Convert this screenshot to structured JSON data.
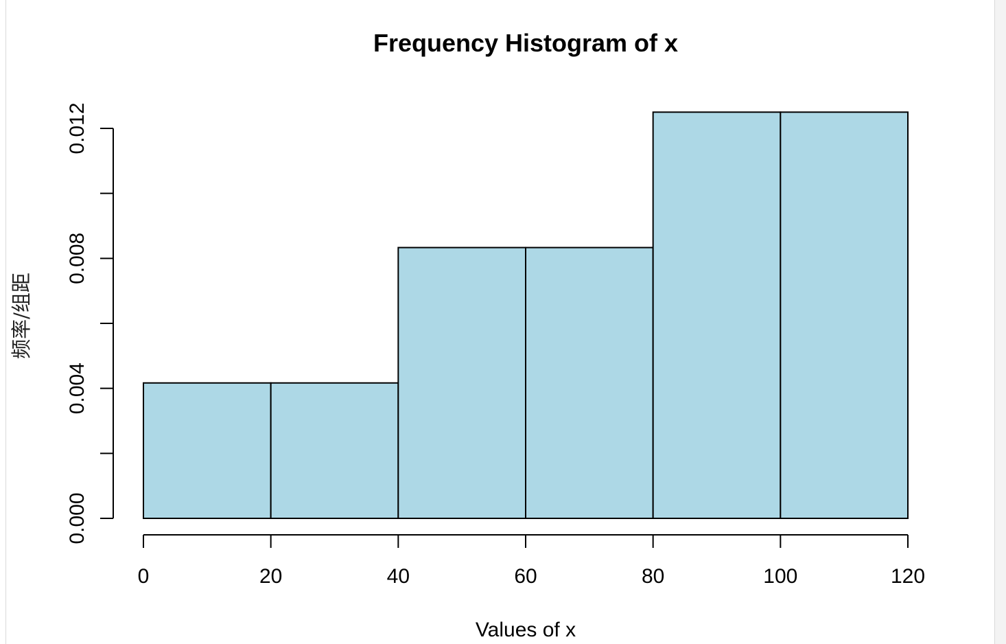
{
  "chart_data": {
    "type": "bar",
    "title": "Frequency Histogram of x",
    "xlabel": "Values of x",
    "ylabel": "频率/组距",
    "bins": [
      {
        "from": 0,
        "to": 20,
        "density": 0.004167
      },
      {
        "from": 20,
        "to": 40,
        "density": 0.004167
      },
      {
        "from": 40,
        "to": 60,
        "density": 0.008333
      },
      {
        "from": 60,
        "to": 80,
        "density": 0.008333
      },
      {
        "from": 80,
        "to": 100,
        "density": 0.0125
      },
      {
        "from": 100,
        "to": 120,
        "density": 0.0125
      }
    ],
    "x_ticks": [
      "0",
      "20",
      "40",
      "60",
      "80",
      "100",
      "120"
    ],
    "y_ticks": [
      "0.000",
      "0.004",
      "0.008",
      "0.012"
    ],
    "y_minor_ticks": [
      0.002,
      0.006,
      0.01
    ],
    "xlim": [
      0,
      120
    ],
    "ylim": [
      0,
      0.012
    ],
    "bar_fill": "#add8e6",
    "bar_stroke": "#000000",
    "grid": false,
    "legend": false
  }
}
